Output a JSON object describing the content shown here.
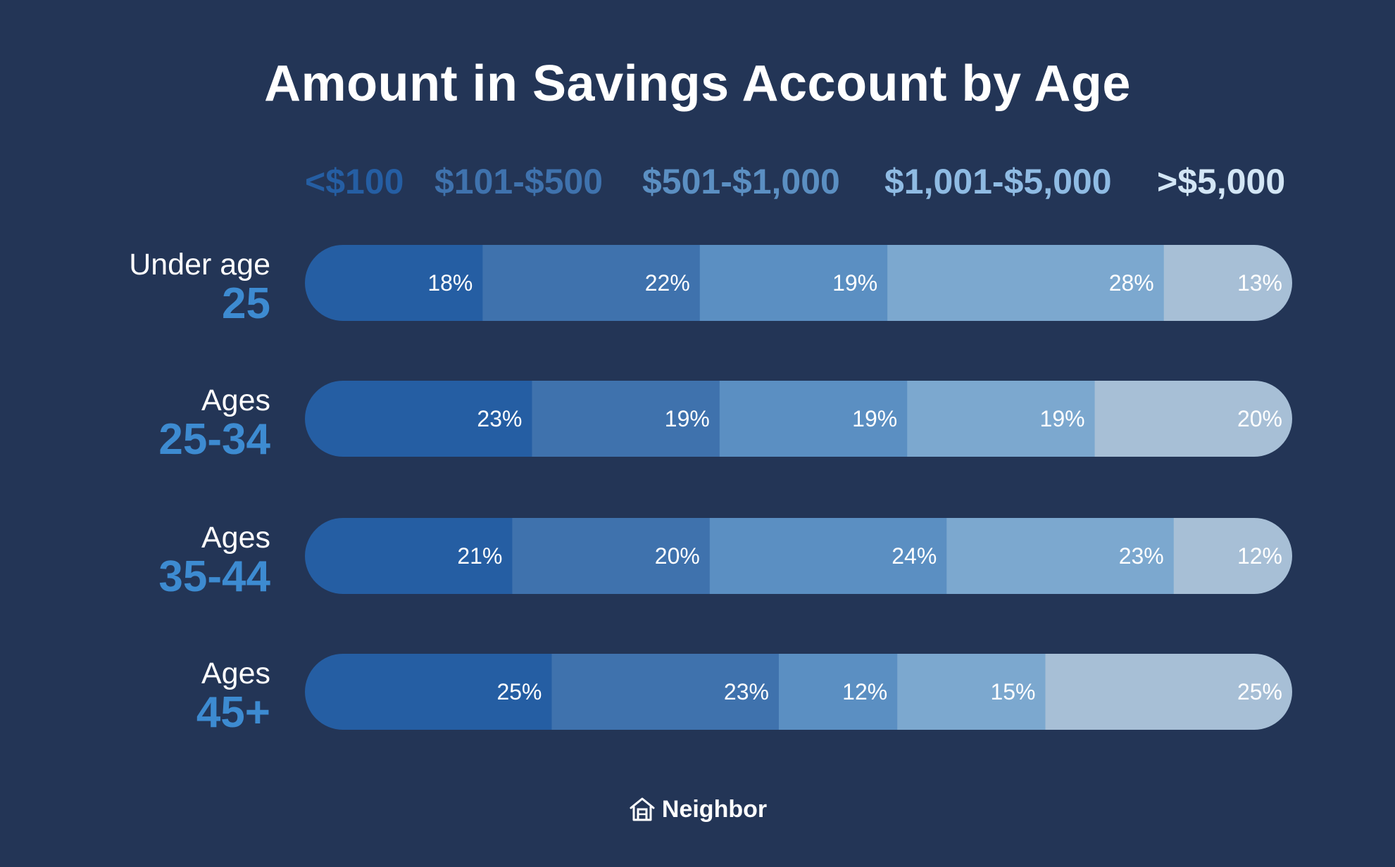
{
  "chart_data": {
    "type": "bar",
    "orientation": "horizontal",
    "stacked": true,
    "title": "Amount in Savings Account by Age",
    "rows": [
      {
        "small": "Under age",
        "big": "25"
      },
      {
        "small": "Ages",
        "big": "25-34"
      },
      {
        "small": "Ages",
        "big": "35-44"
      },
      {
        "small": "Ages",
        "big": "45+"
      }
    ],
    "series": [
      {
        "name": "<$100",
        "values": [
          18,
          23,
          21,
          25
        ],
        "color": "#255ea3"
      },
      {
        "name": "$101-$500",
        "values": [
          22,
          19,
          20,
          23
        ],
        "color": "#3f72ad"
      },
      {
        "name": "$501-$1,000",
        "values": [
          19,
          19,
          24,
          12
        ],
        "color": "#5b8fc2"
      },
      {
        "name": "$1,001-$5,000",
        "values": [
          28,
          19,
          23,
          15
        ],
        "color": "#7ca8cf"
      },
      {
        "name": ">$5,000",
        "values": [
          13,
          20,
          12,
          25
        ],
        "color": "#a7bfd6"
      }
    ],
    "legend_colors": [
      "#255ea3",
      "#3f72ad",
      "#5b8fc2",
      "#8fbbe3",
      "#d3e6f5"
    ],
    "age_accent": "#3d8bd1",
    "value_suffix": "%",
    "legend_position": "top",
    "grid": false
  },
  "brand": {
    "name": "Neighbor",
    "icon": "house-icon"
  }
}
